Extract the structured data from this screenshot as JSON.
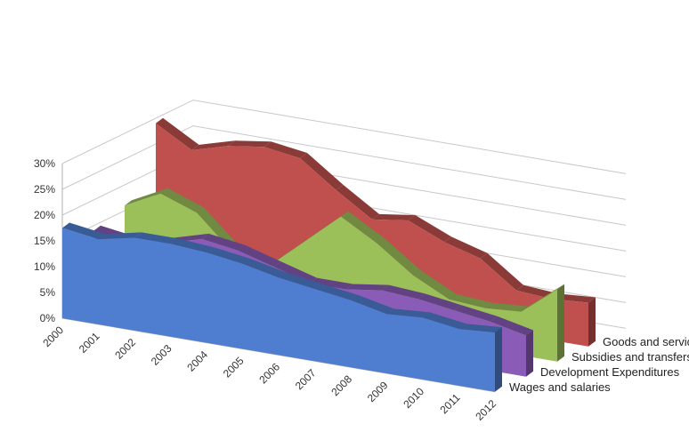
{
  "chart_data": {
    "type": "area",
    "title": "",
    "xlabel": "",
    "ylabel": "",
    "style": "3d-stacked-depth",
    "x": [
      "2000",
      "2001",
      "2002",
      "2003",
      "2004",
      "2005",
      "2006",
      "2007",
      "2008",
      "2009",
      "2010",
      "2011",
      "2012"
    ],
    "ylim": [
      0,
      30
    ],
    "yticks": [
      "0%",
      "5%",
      "10%",
      "15%",
      "20%",
      "25%",
      "30%"
    ],
    "grid": true,
    "series": [
      {
        "name": "Wages and salaries",
        "color": "#4f7ed1",
        "values": [
          17.5,
          16.5,
          18,
          18,
          17.5,
          16.5,
          15,
          14,
          13,
          11.5,
          12,
          11,
          11.5
        ]
      },
      {
        "name": "Development Expenditures",
        "color": "#8a5cb8",
        "values": [
          14,
          13,
          14,
          16,
          15,
          13,
          11,
          11,
          12,
          11.5,
          10.5,
          9.5,
          8
        ]
      },
      {
        "name": "Subsidies and transfers",
        "color": "#9bc05a",
        "values": [
          16,
          19.5,
          17,
          10.5,
          9,
          15,
          21,
          17,
          12,
          8.5,
          8,
          8.5,
          14
        ]
      },
      {
        "name": "Goods and services",
        "color": "#c0504d",
        "values": [
          29,
          25,
          27,
          28,
          27,
          22,
          17.5,
          18.5,
          15.5,
          13.5,
          8.5,
          8,
          8.5
        ]
      }
    ]
  }
}
